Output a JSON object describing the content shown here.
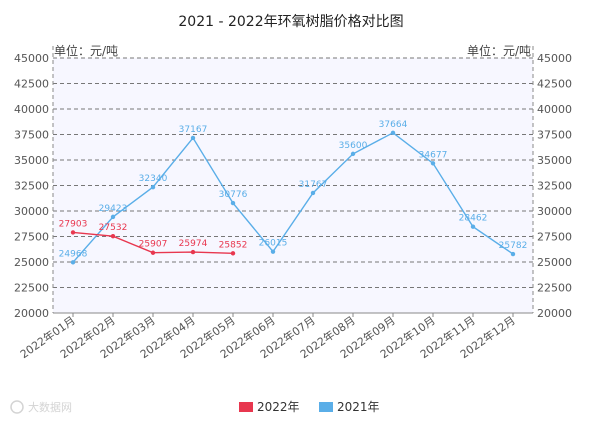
{
  "chart_data": {
    "type": "line",
    "title": "2021 - 2022年环氧树脂价格对比图",
    "ylabel_left": "单位：元/吨",
    "ylabel_right": "单位：元/吨",
    "ylim": [
      20000,
      45000
    ],
    "yticks": [
      "20000",
      "22500",
      "25000",
      "27500",
      "30000",
      "32500",
      "35000",
      "37500",
      "40000",
      "42500",
      "45000"
    ],
    "categories": [
      "2022年01月",
      "2022年02月",
      "2022年03月",
      "2022年04月",
      "2022年05月",
      "2022年06月",
      "2022年07月",
      "2022年08月",
      "2022年09月",
      "2022年10月",
      "2022年11月",
      "2022年12月"
    ],
    "series": [
      {
        "name": "2022年",
        "color": "#e8374f",
        "values": [
          27903,
          27532,
          25907,
          25974,
          25852,
          null,
          null,
          null,
          null,
          null,
          null,
          null
        ]
      },
      {
        "name": "2021年",
        "color": "#5aaee8",
        "values": [
          24968,
          29423,
          32340,
          37167,
          30776,
          26015,
          31767,
          35600,
          37664,
          34677,
          28462,
          25782
        ]
      }
    ],
    "grid": true,
    "legend_position": "bottom"
  },
  "watermark_text": "大数据网"
}
